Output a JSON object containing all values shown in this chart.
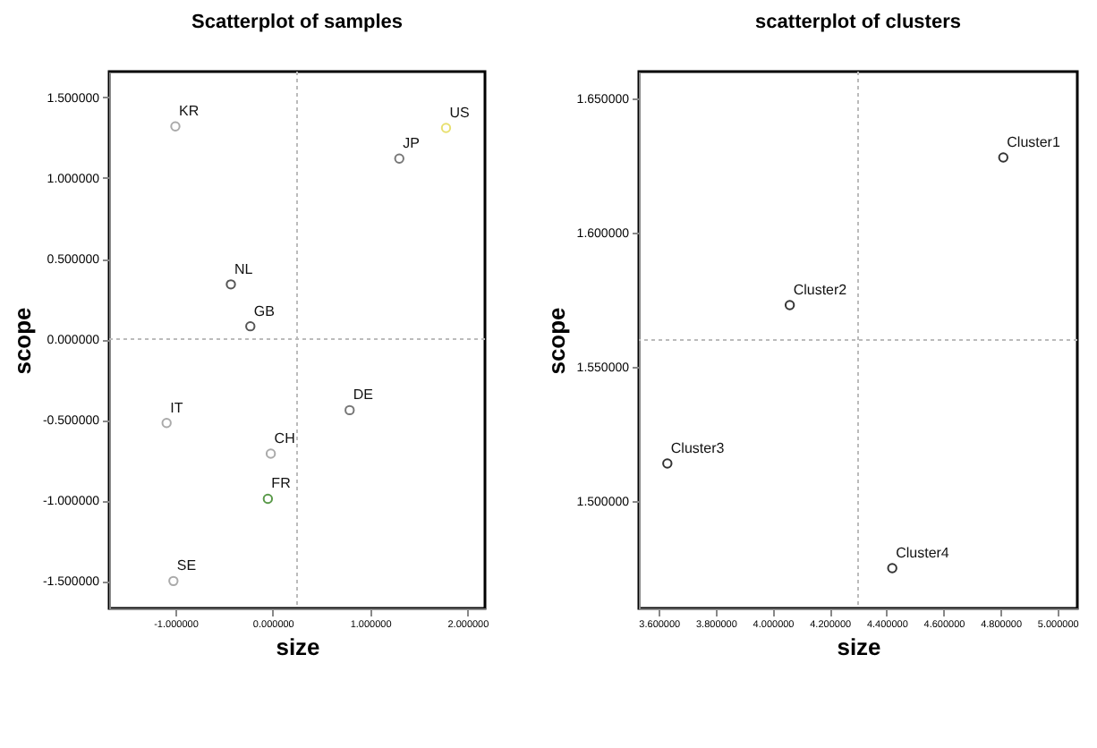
{
  "chart_data": [
    {
      "type": "scatter",
      "title": "Scatterplot of samples",
      "xlabel": "size",
      "ylabel": "scope",
      "marker": "circle",
      "grid": false,
      "legend": false,
      "x": [
        -1.0,
        -0.43,
        -0.23,
        1.78,
        1.3,
        -1.09,
        -1.02,
        0.79,
        -0.02,
        -0.05
      ],
      "values": [
        1.32,
        0.34,
        0.08,
        1.31,
        1.12,
        -0.52,
        -1.5,
        -0.44,
        -0.71,
        -0.99
      ],
      "colors": [
        "#aaaaaa",
        "#555555",
        "#555555",
        "#e8e070",
        "#777777",
        "#aaaaaa",
        "#aaaaaa",
        "#777777",
        "#aaaaaa",
        "#5a9a4a"
      ],
      "annotations": [
        {
          "text": "KR",
          "x": -1.0,
          "y": 1.32
        },
        {
          "text": "NL",
          "x": -0.43,
          "y": 0.34
        },
        {
          "text": "GB",
          "x": -0.23,
          "y": 0.08
        },
        {
          "text": "US",
          "x": 1.78,
          "y": 1.31
        },
        {
          "text": "JP",
          "x": 1.3,
          "y": 1.12
        },
        {
          "text": "IT",
          "x": -1.09,
          "y": -0.52
        },
        {
          "text": "SE",
          "x": -1.02,
          "y": -1.5
        },
        {
          "text": "DE",
          "x": 0.79,
          "y": -0.44
        },
        {
          "text": "CH",
          "x": -0.02,
          "y": -0.71
        },
        {
          "text": "FR",
          "x": -0.05,
          "y": -0.99
        }
      ],
      "xlim": [
        -1.68,
        2.18
      ],
      "ylim": [
        -1.67,
        1.66
      ],
      "xticks": [
        {
          "value": -1,
          "label": "-1.000000"
        },
        {
          "value": 0,
          "label": "0.000000"
        },
        {
          "value": 1,
          "label": "1.000000"
        },
        {
          "value": 2,
          "label": "2.000000"
        }
      ],
      "yticks": [
        {
          "value": -1.5,
          "label": "-1.500000"
        },
        {
          "value": -1,
          "label": "-1.000000"
        },
        {
          "value": -0.5,
          "label": "-0.500000"
        },
        {
          "value": 0,
          "label": "0.000000"
        },
        {
          "value": 0.5,
          "label": "0.500000"
        },
        {
          "value": 1,
          "label": "1.000000"
        },
        {
          "value": 1.5,
          "label": "1.500000"
        }
      ],
      "ref_lines": [
        {
          "axis": "x",
          "value": 0.25,
          "color": "#bbbbbb",
          "line_style": "dotted"
        },
        {
          "axis": "y",
          "value": 0,
          "color": "#bbbbbb",
          "line_style": "dotted"
        }
      ]
    },
    {
      "type": "scatter",
      "title": "scatterplot of clusters",
      "xlabel": "size",
      "ylabel": "scope",
      "marker": "circle",
      "grid": false,
      "legend": false,
      "x": [
        4.81,
        4.06,
        3.63,
        4.42
      ],
      "values": [
        1.628,
        1.573,
        1.514,
        1.475
      ],
      "colors": [
        "#333333",
        "#333333",
        "#333333",
        "#333333"
      ],
      "annotations": [
        {
          "text": "Cluster1",
          "x": 4.81,
          "y": 1.628
        },
        {
          "text": "Cluster2",
          "x": 4.06,
          "y": 1.573
        },
        {
          "text": "Cluster3",
          "x": 3.63,
          "y": 1.514
        },
        {
          "text": "Cluster4",
          "x": 4.42,
          "y": 1.475
        }
      ],
      "xlim": [
        3.53,
        5.07
      ],
      "ylim": [
        1.46,
        1.66
      ],
      "xticks": [
        {
          "value": 3.6,
          "label": "3.600000"
        },
        {
          "value": 3.8,
          "label": "3.800000"
        },
        {
          "value": 4.0,
          "label": "4.000000"
        },
        {
          "value": 4.2,
          "label": "4.200000"
        },
        {
          "value": 4.4,
          "label": "4.400000"
        },
        {
          "value": 4.6,
          "label": "4.600000"
        },
        {
          "value": 4.8,
          "label": "4.800000"
        },
        {
          "value": 5.0,
          "label": "5.000000"
        }
      ],
      "yticks": [
        {
          "value": 1.5,
          "label": "1.500000"
        },
        {
          "value": 1.55,
          "label": "1.550000"
        },
        {
          "value": 1.6,
          "label": "1.600000"
        },
        {
          "value": 1.65,
          "label": "1.650000"
        }
      ],
      "ref_lines": [
        {
          "axis": "x",
          "value": 4.3,
          "color": "#bbbbbb",
          "line_style": "dotted"
        },
        {
          "axis": "y",
          "value": 1.56,
          "color": "#bbbbbb",
          "line_style": "dotted"
        }
      ]
    }
  ]
}
